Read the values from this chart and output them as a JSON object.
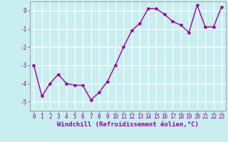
{
  "x": [
    0,
    1,
    2,
    3,
    4,
    5,
    6,
    7,
    8,
    9,
    10,
    11,
    12,
    13,
    14,
    15,
    16,
    17,
    18,
    19,
    20,
    21,
    22,
    23
  ],
  "y": [
    -3.0,
    -4.7,
    -4.0,
    -3.5,
    -4.0,
    -4.1,
    -4.1,
    -4.9,
    -4.5,
    -3.9,
    -3.0,
    -2.0,
    -1.1,
    -0.7,
    0.1,
    0.1,
    -0.2,
    -0.6,
    -0.8,
    -1.2,
    0.3,
    -0.9,
    -0.9,
    0.2
  ],
  "line_color": "#990099",
  "marker": "*",
  "marker_size": 3,
  "bg_color": "#c8eef0",
  "grid_color": "#ffffff",
  "xlabel": "Windchill (Refroidissement éolien,°C)",
  "ylabel": "",
  "ylim": [
    -5.5,
    0.5
  ],
  "xlim": [
    -0.5,
    23.5
  ],
  "yticks": [
    0,
    -1,
    -2,
    -3,
    -4,
    -5
  ],
  "xticks": [
    0,
    1,
    2,
    3,
    4,
    5,
    6,
    7,
    8,
    9,
    10,
    11,
    12,
    13,
    14,
    15,
    16,
    17,
    18,
    19,
    20,
    21,
    22,
    23
  ],
  "tick_label_size": 5.5,
  "xlabel_size": 6.5,
  "line_width": 1.0,
  "tick_color": "#990099",
  "spine_color": "#888888"
}
